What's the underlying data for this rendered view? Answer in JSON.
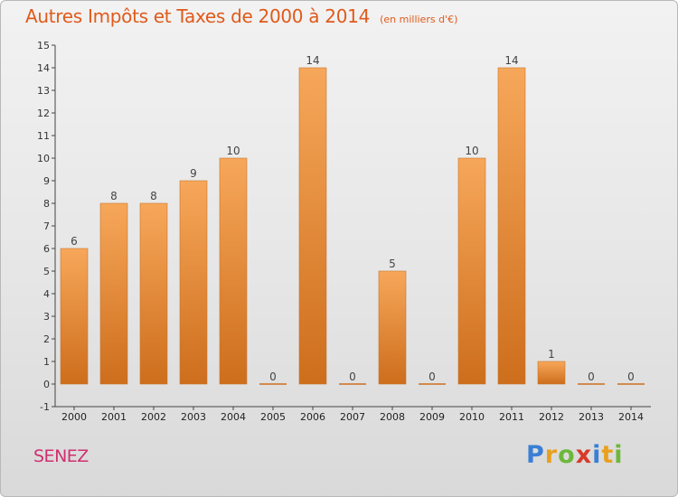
{
  "header": {
    "title": "Autres Impôts et Taxes de 2000 à 2014",
    "unit": "(en milliers d'€)"
  },
  "footer": {
    "commune": "SENEZ",
    "brand": [
      "P",
      "r",
      "o",
      "x",
      "i",
      "t",
      "i"
    ]
  },
  "colors": {
    "title": "#e05a1a",
    "commune": "#d03070",
    "bar_top": "#f7a75a",
    "bar_bottom": "#cd6e1c",
    "brand": [
      "#3a7fd5",
      "#e8a020",
      "#6cb83a",
      "#d83a2a",
      "#3a7fd5",
      "#e8a020",
      "#6cb83a"
    ]
  },
  "chart_data": {
    "type": "bar",
    "categories": [
      "2000",
      "2001",
      "2002",
      "2003",
      "2004",
      "2005",
      "2006",
      "2007",
      "2008",
      "2009",
      "2010",
      "2011",
      "2012",
      "2013",
      "2014"
    ],
    "values": [
      6,
      8,
      8,
      9,
      10,
      0,
      14,
      0,
      5,
      0,
      10,
      14,
      1,
      0,
      0
    ],
    "data_labels": [
      "6",
      "8",
      "8",
      "9",
      "10",
      "0",
      "14",
      "0",
      "5",
      "0",
      "10",
      "14",
      "1",
      "0",
      "0"
    ],
    "yticks": [
      "-1",
      "0",
      "1",
      "2",
      "3",
      "4",
      "5",
      "6",
      "7",
      "8",
      "9",
      "10",
      "11",
      "12",
      "13",
      "14",
      "15"
    ],
    "ylim": [
      -1,
      15
    ],
    "grid": false,
    "legend": "none"
  }
}
